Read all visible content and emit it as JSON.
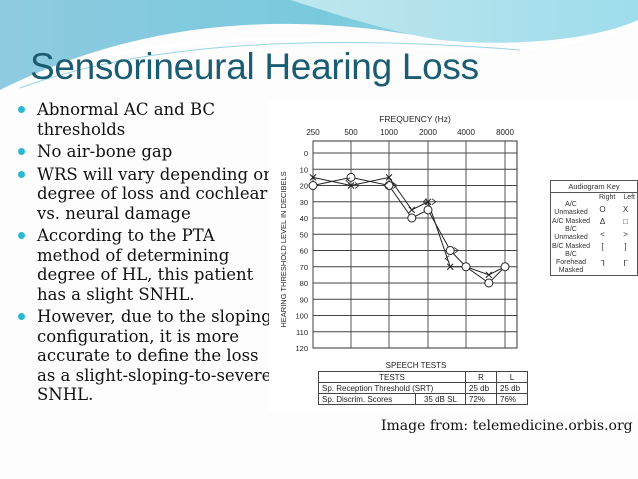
{
  "slide": {
    "title": "Sensorineural Hearing Loss",
    "bullets": [
      "Abnormal AC and BC thresholds",
      "No air-bone gap",
      "WRS will vary depending on degree of loss and cochlear vs. neural damage",
      "According to the PTA method of determining degree of HL, this patient has a slight SNHL.",
      "However, due to the sloping configuration, it is more accurate to define the loss as a slight-sloping-to-severe SNHL."
    ],
    "caption": "Image from: telemedicine.orbis.org",
    "colors": {
      "title": "#1a5c72",
      "bullet": "#2bb8d0",
      "wave_light": "#a8dde6",
      "wave_dark": "#5fb8d2"
    }
  },
  "audiogram_key": {
    "title": "Audiogram Key",
    "col_right": "Right",
    "col_left": "Left",
    "rows": [
      {
        "label": "A/C Unmasked",
        "right": "O",
        "left": "X"
      },
      {
        "label": "A/C Masked",
        "right": "Δ",
        "left": "□"
      },
      {
        "label": "B/C Unmasked",
        "right": "<",
        "left": ">"
      },
      {
        "label": "B/C Masked",
        "right": "[",
        "left": "]"
      },
      {
        "label": "B/C Forehead Masked",
        "right": "ᒣ",
        "left": "ᒥ"
      }
    ]
  },
  "speech_tests": {
    "title": "SPEECH TESTS",
    "header": [
      "TESTS",
      "R",
      "L"
    ],
    "rows": [
      {
        "test": "Sp. Reception Threshold (SRT)",
        "level": "",
        "r": "25 db",
        "l": "25 db"
      },
      {
        "test": "Sp. Discrim. Scores",
        "level": "35 dB SL",
        "r": "72%",
        "l": "76%"
      }
    ]
  },
  "chart_data": {
    "type": "line",
    "title": "FREQUENCY (Hz)",
    "xlabel": "FREQUENCY (Hz)",
    "ylabel": "HEARING THRESHOLD LEVEL IN DECIBELS",
    "x_ticks": [
      "250",
      "500",
      "1000",
      "2000",
      "4000",
      "8000"
    ],
    "y_ticks": [
      "0",
      "10",
      "20",
      "30",
      "40",
      "50",
      "60",
      "70",
      "80",
      "90",
      "100",
      "110",
      "120"
    ],
    "ylim": [
      -10,
      120
    ],
    "y_inverted": true,
    "grid": true,
    "x": [
      250,
      500,
      1000,
      1500,
      2000,
      3000,
      4000,
      6000,
      8000
    ],
    "series": [
      {
        "name": "Right A/C Unmasked (O)",
        "values": [
          20,
          15,
          20,
          40,
          35,
          60,
          70,
          80,
          70
        ]
      },
      {
        "name": "Left A/C Unmasked (X)",
        "values": [
          15,
          20,
          15,
          35,
          30,
          70,
          70,
          75,
          70
        ]
      },
      {
        "name": "Right B/C Unmasked (<)",
        "x": [
          500,
          1000,
          2000,
          3000
        ],
        "values": [
          17,
          20,
          30,
          65
        ]
      },
      {
        "name": "Left B/C Unmasked (>)",
        "x": [
          500,
          1000,
          2000,
          3000
        ],
        "values": [
          20,
          20,
          30,
          60
        ]
      }
    ]
  }
}
